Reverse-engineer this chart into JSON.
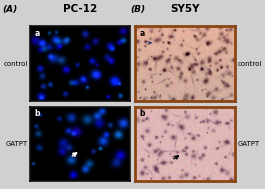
{
  "title_left": "PC-12",
  "title_right": "SY5Y",
  "label_A": "(A)",
  "label_B": "(B)",
  "label_a_tl": "a",
  "label_b_bl": "b",
  "label_a_tr": "a",
  "label_b_br": "b",
  "row_labels_left": [
    "control",
    "GATPT"
  ],
  "row_labels_right": [
    "control",
    "GATPT"
  ],
  "bg_color": "#d0d0d0",
  "border_color_left": "#111111",
  "border_color_right": "#8B4513",
  "figsize": [
    2.65,
    1.89
  ],
  "dpi": 100
}
